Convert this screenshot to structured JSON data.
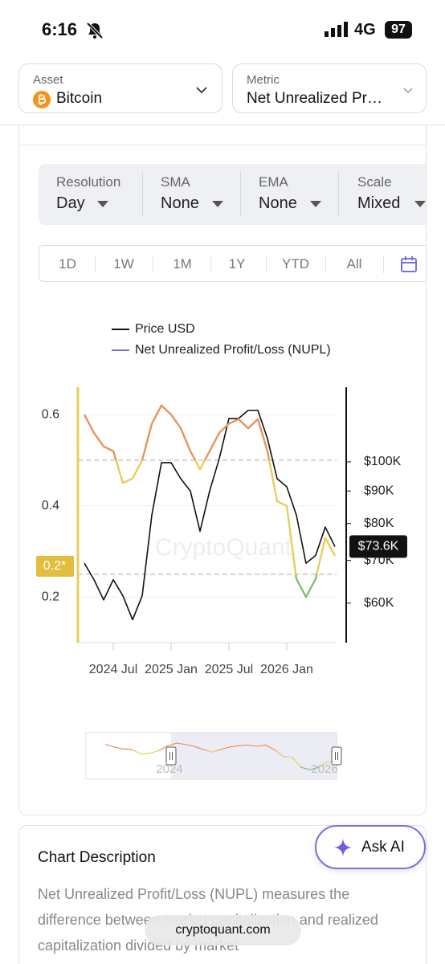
{
  "status_bar": {
    "time": "6:16",
    "network": "4G",
    "battery": "97"
  },
  "selectors": [
    {
      "label": "Asset",
      "value": "Bitcoin"
    },
    {
      "label": "Metric",
      "value": "Net Unrealized Pr…"
    }
  ],
  "options": [
    {
      "label": "Resolution",
      "value": "Day"
    },
    {
      "label": "SMA",
      "value": "None"
    },
    {
      "label": "EMA",
      "value": "None"
    },
    {
      "label": "Scale",
      "value": "Mixed"
    }
  ],
  "ranges": [
    "1D",
    "1W",
    "1M",
    "1Y",
    "YTD",
    "All"
  ],
  "chart_data": {
    "type": "line",
    "watermark": "CryptoQuant",
    "x": [
      3,
      4,
      5,
      6,
      7,
      8,
      9,
      10,
      11,
      12,
      13,
      14,
      15,
      16,
      17,
      18,
      19,
      20,
      21,
      22,
      23,
      24,
      25,
      26,
      27,
      28,
      29
    ],
    "xlim": [
      2.33,
      29.17
    ],
    "xticks": [
      {
        "value": 6,
        "label": "2024 Jul"
      },
      {
        "value": 12,
        "label": "2025 Jan"
      },
      {
        "value": 18,
        "label": "2025 Jul"
      },
      {
        "value": 24,
        "label": "2026 Jan"
      }
    ],
    "ylim": [
      0.1,
      0.66
    ],
    "yticks": [
      0.6,
      0.4,
      0.2
    ],
    "y2lim": [
      52000,
      131000
    ],
    "y2_log": true,
    "y2ticks": [
      {
        "value": 100000,
        "label": "$100K"
      },
      {
        "value": 90000,
        "label": "$90K"
      },
      {
        "value": 80000,
        "label": "$80K"
      },
      {
        "value": 70000,
        "label": "$70K"
      },
      {
        "value": 60000,
        "label": "$60K"
      }
    ],
    "grid": true,
    "zones": [
      {
        "min": 0.5,
        "color": "#e6955e"
      },
      {
        "min": 0.25,
        "color": "#e9cd5c"
      },
      {
        "color": "#7cc26a"
      }
    ],
    "marker": {
      "value": 0.25,
      "label": "0.2*"
    },
    "series": [
      {
        "name": "Price USD",
        "color": "#111111",
        "axis": "y2",
        "values": [
          69300,
          65300,
          60700,
          65300,
          61600,
          56500,
          61600,
          82500,
          99700,
          99700,
          94100,
          90000,
          77800,
          90000,
          101200,
          117000,
          117000,
          120500,
          120500,
          108800,
          94100,
          91400,
          82500,
          69300,
          71300,
          79000,
          73600
        ],
        "value_labels": [
          null,
          null,
          null,
          null,
          null,
          null,
          null,
          null,
          null,
          null,
          null,
          null,
          null,
          null,
          null,
          null,
          null,
          null,
          null,
          null,
          null,
          null,
          null,
          null,
          null,
          null,
          "$73.6K"
        ]
      },
      {
        "name": "Net Unrealized Profit/Loss (NUPL)",
        "color": "#7b6fe0",
        "values": [
          0.6,
          0.56,
          0.53,
          0.52,
          0.45,
          0.46,
          0.5,
          0.58,
          0.62,
          0.6,
          0.57,
          0.52,
          0.48,
          0.52,
          0.56,
          0.58,
          0.59,
          0.57,
          0.59,
          0.52,
          0.41,
          0.4,
          0.24,
          0.2,
          0.24,
          0.33,
          0.29
        ]
      }
    ]
  },
  "navigator": {
    "labels": [
      "2024",
      "2026"
    ]
  },
  "description": {
    "title": "Chart Description",
    "text": "Net Unrealized Profit/Loss (NUPL) measures the difference between market capitalization and realized capitalization divided by market"
  },
  "ask_ai": "Ask AI",
  "url": "cryptoquant.com"
}
